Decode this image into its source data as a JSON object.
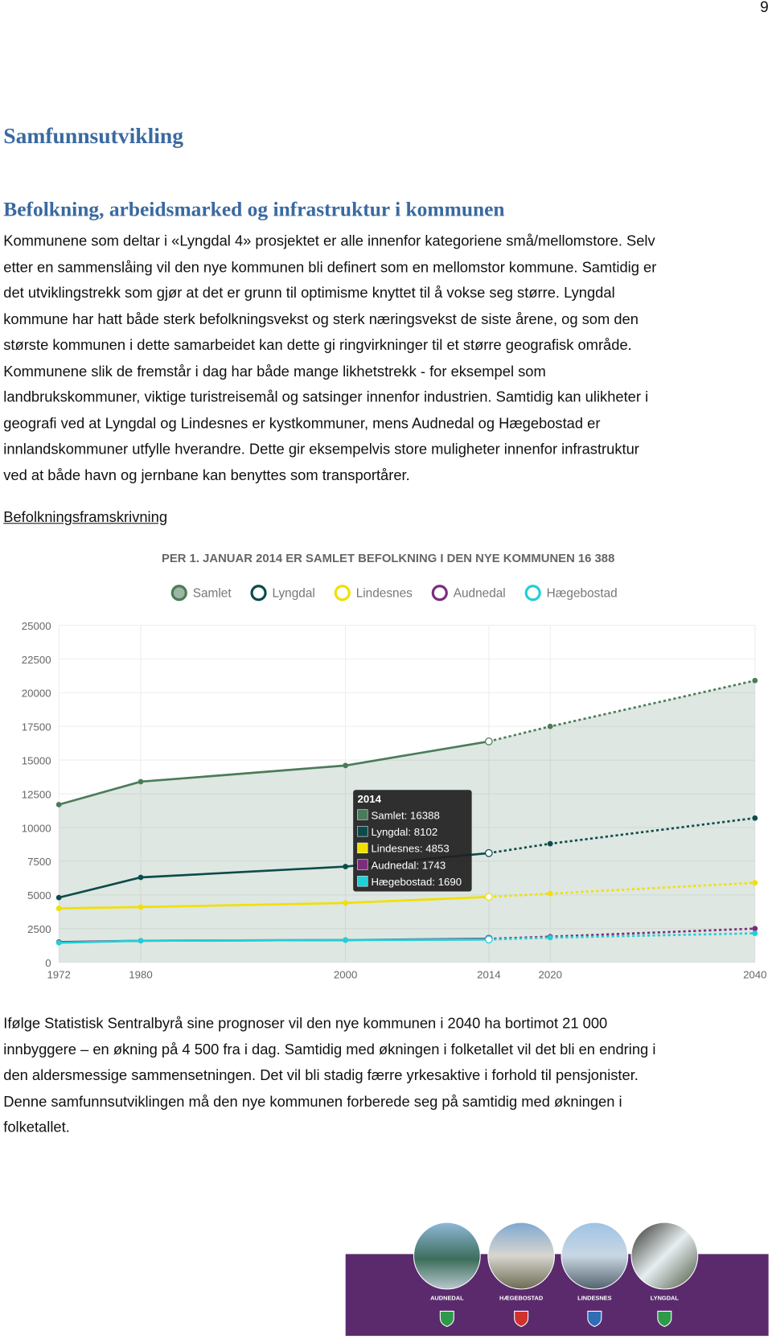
{
  "page_number": "9",
  "heading": "Samfunnsutvikling",
  "subheading": "Befolkning, arbeidsmarked og infrastruktur i kommunen",
  "paragraph_1": [
    "Kommunene som deltar i «Lyngdal 4» prosjektet er alle innenfor kategoriene små/mellomstore. Selv",
    "etter en sammenslåing vil den nye kommunen bli definert som en mellomstor kommune. Samtidig er",
    "det utviklingstrekk som gjør at det er grunn til optimisme knyttet til å vokse seg større. Lyngdal",
    "kommune har hatt både sterk befolkningsvekst og sterk næringsvekst de siste årene, og som den",
    "største kommunen i dette samarbeidet kan dette gi ringvirkninger til et større geografisk område.",
    "Kommunene slik de fremstår i dag har både mange likhetstrekk - for eksempel som",
    "landbrukskommuner, viktige turistreisemål og satsinger innenfor industrien. Samtidig kan ulikheter i",
    "geografi ved at Lyngdal og Lindesnes er kystkommuner, mens Audnedal og Hægebostad  er",
    "innlandskommuner utfylle hverandre. Dette gir eksempelvis store muligheter innenfor infrastruktur",
    "ved at både havn og jernbane kan benyttes som transportårer."
  ],
  "link": "Befolkningsframskrivning",
  "chart_data": {
    "type": "line",
    "title": "PER 1. JANUAR 2014 ER SAMLET BEFOLKNING I DEN NYE KOMMUNEN 16 388",
    "x": [
      1972,
      1980,
      2000,
      2014,
      2020,
      2040
    ],
    "xlim": [
      1972,
      2040
    ],
    "xticks": [
      1972,
      1980,
      2000,
      2014,
      2020,
      2040
    ],
    "ylim": [
      0,
      25000
    ],
    "yticks": [
      0,
      2500,
      5000,
      7500,
      10000,
      12500,
      15000,
      17500,
      20000,
      22500,
      25000
    ],
    "grid": true,
    "series": [
      {
        "name": "Samlet",
        "color": "#4a7c59",
        "values": [
          11700,
          13400,
          14600,
          16388,
          17500,
          20900
        ]
      },
      {
        "name": "Lyngdal",
        "color": "#0d4b4b",
        "values": [
          4800,
          6300,
          7100,
          8102,
          8800,
          10700
        ]
      },
      {
        "name": "Lindesnes",
        "color": "#f0e000",
        "values": [
          4000,
          4100,
          4400,
          4853,
          5100,
          5900
        ]
      },
      {
        "name": "Audnedal",
        "color": "#7b2d7b",
        "values": [
          1500,
          1600,
          1650,
          1743,
          1900,
          2500
        ]
      },
      {
        "name": "Hægebostad",
        "color": "#1fd0d6",
        "values": [
          1450,
          1600,
          1650,
          1690,
          1830,
          2150
        ]
      }
    ],
    "tooltip": {
      "x": 2014,
      "rows": [
        "Samlet:  16388",
        "Lyngdal:  8102",
        "Lindesnes:  4853",
        "Audnedal:  1743",
        "Hægebostad:  1690"
      ]
    }
  },
  "paragraph_2": [
    "Ifølge Statistisk Sentralbyrå sine prognoser vil den nye kommunen i 2040 ha bortimot 21 000",
    "innbyggere – en økning på 4 500 fra i dag. Samtidig med økningen i folketallet vil det bli en endring i",
    "den aldersmessige sammensetningen. Det vil bli stadig færre yrkesaktive i forhold til pensjonister.",
    "Denne samfunnsutviklingen må den nye kommunen forberede seg på samtidig med økningen i",
    "folketallet."
  ],
  "footer": {
    "municipalities": [
      "AUDNEDAL",
      "HÆGEBOSTAD",
      "LINDESNES",
      "LYNGDAL"
    ]
  }
}
